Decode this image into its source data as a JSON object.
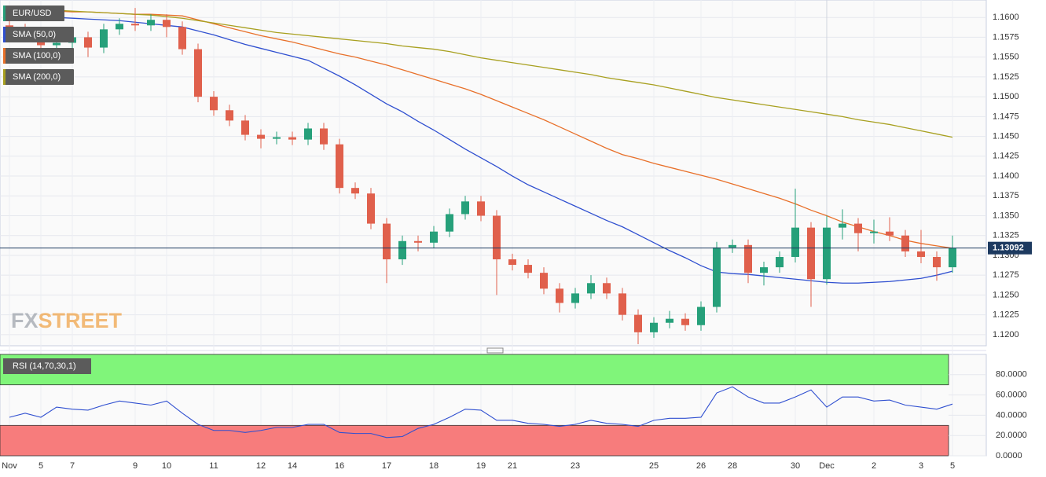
{
  "chart_data": [
    {
      "type": "candlestick",
      "categories": [
        "Nov",
        null,
        "5",
        null,
        "7",
        null,
        null,
        null,
        "9",
        null,
        "10",
        null,
        null,
        "11",
        null,
        null,
        "12",
        null,
        "14",
        null,
        null,
        "16",
        null,
        null,
        "17",
        null,
        null,
        "18",
        null,
        null,
        "19",
        null,
        "21",
        null,
        null,
        null,
        "23",
        null,
        null,
        null,
        null,
        "25",
        null,
        null,
        "26",
        null,
        "28",
        null,
        null,
        null,
        "30",
        null,
        "Dec",
        null,
        null,
        "2",
        null,
        null,
        "3",
        null,
        "5"
      ],
      "series": [
        {
          "name": "EUR/USD",
          "up_color": "#26a07a",
          "down_color": "#e0604c",
          "open": [
            1.159,
            1.1585,
            1.1578,
            1.1565,
            1.1568,
            1.1575,
            1.1562,
            1.1585,
            1.1592,
            1.159,
            1.1597,
            1.1588,
            1.156,
            1.15,
            1.1483,
            1.147,
            1.1452,
            1.1447,
            1.1449,
            1.1446,
            1.146,
            1.144,
            1.1385,
            1.1378,
            1.134,
            1.1295,
            1.1318,
            1.1316,
            1.133,
            1.1352,
            1.1368,
            1.135,
            1.1295,
            1.1288,
            1.1278,
            1.1258,
            1.124,
            1.1252,
            1.1265,
            1.1252,
            1.1225,
            1.1203,
            1.1215,
            1.122,
            1.1212,
            1.1235,
            1.131,
            1.1313,
            1.1278,
            1.1285,
            1.1298,
            1.1335,
            1.127,
            1.1335,
            1.134,
            1.1328,
            1.133,
            1.1325,
            1.1305,
            1.1298,
            1.1285
          ],
          "high": [
            1.1597,
            1.1592,
            1.1585,
            1.1575,
            1.1582,
            1.1582,
            1.1592,
            1.1599,
            1.1612,
            1.1604,
            1.1604,
            1.1595,
            1.1567,
            1.1507,
            1.149,
            1.1477,
            1.1459,
            1.1456,
            1.1456,
            1.1467,
            1.1467,
            1.1447,
            1.1392,
            1.1385,
            1.1347,
            1.1325,
            1.1325,
            1.1337,
            1.1359,
            1.1375,
            1.1375,
            1.1357,
            1.1302,
            1.1295,
            1.1285,
            1.1265,
            1.1259,
            1.1275,
            1.1272,
            1.1259,
            1.1232,
            1.1222,
            1.123,
            1.1227,
            1.1242,
            1.1317,
            1.132,
            1.132,
            1.1292,
            1.1305,
            1.1384,
            1.1342,
            1.135,
            1.1358,
            1.1347,
            1.1345,
            1.1348,
            1.1332,
            1.1332,
            1.1305,
            1.1325
          ],
          "low": [
            1.1578,
            1.1571,
            1.1558,
            1.1558,
            1.1561,
            1.155,
            1.1555,
            1.1578,
            1.1583,
            1.1583,
            1.1575,
            1.1553,
            1.1493,
            1.1476,
            1.1463,
            1.1445,
            1.1435,
            1.144,
            1.1439,
            1.1439,
            1.1433,
            1.1378,
            1.1371,
            1.1333,
            1.1265,
            1.1288,
            1.1305,
            1.1309,
            1.1323,
            1.1345,
            1.1343,
            1.125,
            1.1281,
            1.1271,
            1.1251,
            1.1228,
            1.1233,
            1.1245,
            1.1245,
            1.1218,
            1.1188,
            1.1196,
            1.1208,
            1.1205,
            1.1205,
            1.1228,
            1.1303,
            1.1265,
            1.1262,
            1.1278,
            1.1291,
            1.1235,
            1.1263,
            1.132,
            1.1305,
            1.1315,
            1.1318,
            1.1298,
            1.129,
            1.1268,
            1.1278
          ],
          "close": [
            1.1585,
            1.1578,
            1.1565,
            1.1568,
            1.1575,
            1.1562,
            1.1585,
            1.1592,
            1.159,
            1.1597,
            1.1588,
            1.156,
            1.15,
            1.1483,
            1.147,
            1.1452,
            1.1447,
            1.1449,
            1.1446,
            1.146,
            1.144,
            1.1385,
            1.1378,
            1.134,
            1.1295,
            1.1318,
            1.1316,
            1.133,
            1.1352,
            1.1368,
            1.135,
            1.1295,
            1.1288,
            1.1278,
            1.1258,
            1.124,
            1.1252,
            1.1265,
            1.1252,
            1.1225,
            1.1203,
            1.1215,
            1.122,
            1.1212,
            1.1235,
            1.131,
            1.1313,
            1.1278,
            1.1285,
            1.1298,
            1.1335,
            1.127,
            1.1335,
            1.134,
            1.1328,
            1.133,
            1.1325,
            1.1305,
            1.1298,
            1.1285,
            1.13092
          ]
        },
        {
          "name": "SMA (50,0)",
          "color": "#2f4fd0",
          "values": [
            1.1602,
            1.1601,
            1.16,
            1.16,
            1.1599,
            1.1598,
            1.1597,
            1.1596,
            1.1594,
            1.1592,
            1.159,
            1.1588,
            1.1583,
            1.1578,
            1.1572,
            1.1566,
            1.1561,
            1.1556,
            1.1551,
            1.1546,
            1.1536,
            1.1526,
            1.1515,
            1.1503,
            1.1491,
            1.1481,
            1.1469,
            1.1458,
            1.1446,
            1.1434,
            1.1423,
            1.1412,
            1.14,
            1.1389,
            1.138,
            1.1371,
            1.1362,
            1.1353,
            1.1344,
            1.1336,
            1.1326,
            1.1316,
            1.1306,
            1.1297,
            1.1287,
            1.1279,
            1.1277,
            1.1276,
            1.1274,
            1.1272,
            1.127,
            1.1268,
            1.1266,
            1.1265,
            1.1265,
            1.1266,
            1.1267,
            1.1269,
            1.1271,
            1.1275,
            1.128
          ]
        },
        {
          "name": "SMA (100,0)",
          "color": "#e8702a",
          "values": [
            1.161,
            1.1609,
            1.1609,
            1.1608,
            1.1607,
            1.1607,
            1.1606,
            1.1605,
            1.1604,
            1.1604,
            1.1603,
            1.1602,
            1.1597,
            1.1592,
            1.1587,
            1.1582,
            1.1577,
            1.1573,
            1.1569,
            1.1564,
            1.1559,
            1.1554,
            1.155,
            1.1545,
            1.154,
            1.1534,
            1.1528,
            1.1522,
            1.1516,
            1.151,
            1.1503,
            1.1495,
            1.1487,
            1.1479,
            1.1471,
            1.1462,
            1.1453,
            1.1444,
            1.1435,
            1.1427,
            1.1422,
            1.1416,
            1.1411,
            1.1406,
            1.1401,
            1.1396,
            1.139,
            1.1384,
            1.1378,
            1.1372,
            1.1365,
            1.1357,
            1.135,
            1.1342,
            1.1336,
            1.133,
            1.1325,
            1.1319,
            1.1315,
            1.1312,
            1.1309
          ]
        },
        {
          "name": "SMA (200,0)",
          "color": "#a8a020",
          "values": [
            1.1612,
            1.1611,
            1.161,
            1.1609,
            1.1608,
            1.1607,
            1.1606,
            1.1605,
            1.1604,
            1.1603,
            1.1601,
            1.1599,
            1.1596,
            1.1593,
            1.159,
            1.1587,
            1.1584,
            1.1581,
            1.1579,
            1.1577,
            1.1575,
            1.1573,
            1.1571,
            1.1569,
            1.1567,
            1.1564,
            1.1562,
            1.156,
            1.1557,
            1.1553,
            1.1549,
            1.1546,
            1.1543,
            1.154,
            1.1537,
            1.1534,
            1.1531,
            1.1528,
            1.1524,
            1.1521,
            1.1518,
            1.1515,
            1.1511,
            1.1507,
            1.1503,
            1.1499,
            1.1496,
            1.1493,
            1.149,
            1.1487,
            1.1484,
            1.1481,
            1.1478,
            1.1475,
            1.1471,
            1.1468,
            1.1465,
            1.1461,
            1.1457,
            1.1453,
            1.1449
          ]
        }
      ],
      "last_price": 1.13092,
      "last_price_color": "#1d3a60",
      "ylim": [
        1.1186,
        1.1622
      ],
      "yticks": [
        {
          "value": 1.12,
          "label": "1.1200"
        },
        {
          "value": 1.1225,
          "label": "1.1225"
        },
        {
          "value": 1.125,
          "label": "1.1250"
        },
        {
          "value": 1.1275,
          "label": "1.1275"
        },
        {
          "value": 1.13,
          "label": "1.1300"
        },
        {
          "value": 1.1325,
          "label": "1.1325"
        },
        {
          "value": 1.135,
          "label": "1.1350"
        },
        {
          "value": 1.1375,
          "label": "1.1375"
        },
        {
          "value": 1.14,
          "label": "1.1400"
        },
        {
          "value": 1.1425,
          "label": "1.1425"
        },
        {
          "value": 1.145,
          "label": "1.1450"
        },
        {
          "value": 1.1475,
          "label": "1.1475"
        },
        {
          "value": 1.15,
          "label": "1.1500"
        },
        {
          "value": 1.1525,
          "label": "1.1525"
        },
        {
          "value": 1.155,
          "label": "1.1550"
        },
        {
          "value": 1.1575,
          "label": "1.1575"
        },
        {
          "value": 1.16,
          "label": "1.1600"
        }
      ],
      "grid": true,
      "brand": [
        "FX",
        "STREET"
      ]
    },
    {
      "type": "line",
      "series": [
        {
          "name": "RSI (14,70,30,1)",
          "color": "#2f4fd0",
          "values": [
            38,
            42,
            38,
            48,
            46,
            45,
            50,
            54,
            52,
            50,
            54,
            42,
            31,
            25,
            25,
            23,
            25,
            28,
            28,
            31,
            31,
            23,
            22,
            22,
            18,
            19,
            27,
            31,
            38,
            46,
            45,
            35,
            35,
            32,
            31,
            29,
            31,
            35,
            32,
            31,
            29,
            35,
            37,
            37,
            38,
            62,
            68,
            58,
            52,
            52,
            58,
            65,
            48,
            58,
            58,
            54,
            55,
            50,
            48,
            46,
            51
          ]
        }
      ],
      "bands": [
        {
          "from": 70,
          "to": 100,
          "color": "#80f57a"
        },
        {
          "from": 0,
          "to": 30,
          "color": "#f77c7c"
        }
      ],
      "ylim": [
        0,
        100
      ],
      "yticks": [
        {
          "value": 0,
          "label": "0.0000"
        },
        {
          "value": 20,
          "label": "20.0000"
        },
        {
          "value": 40,
          "label": "40.0000"
        },
        {
          "value": 60,
          "label": "60.0000"
        },
        {
          "value": 80,
          "label": "80.0000"
        }
      ],
      "grid": true
    }
  ]
}
